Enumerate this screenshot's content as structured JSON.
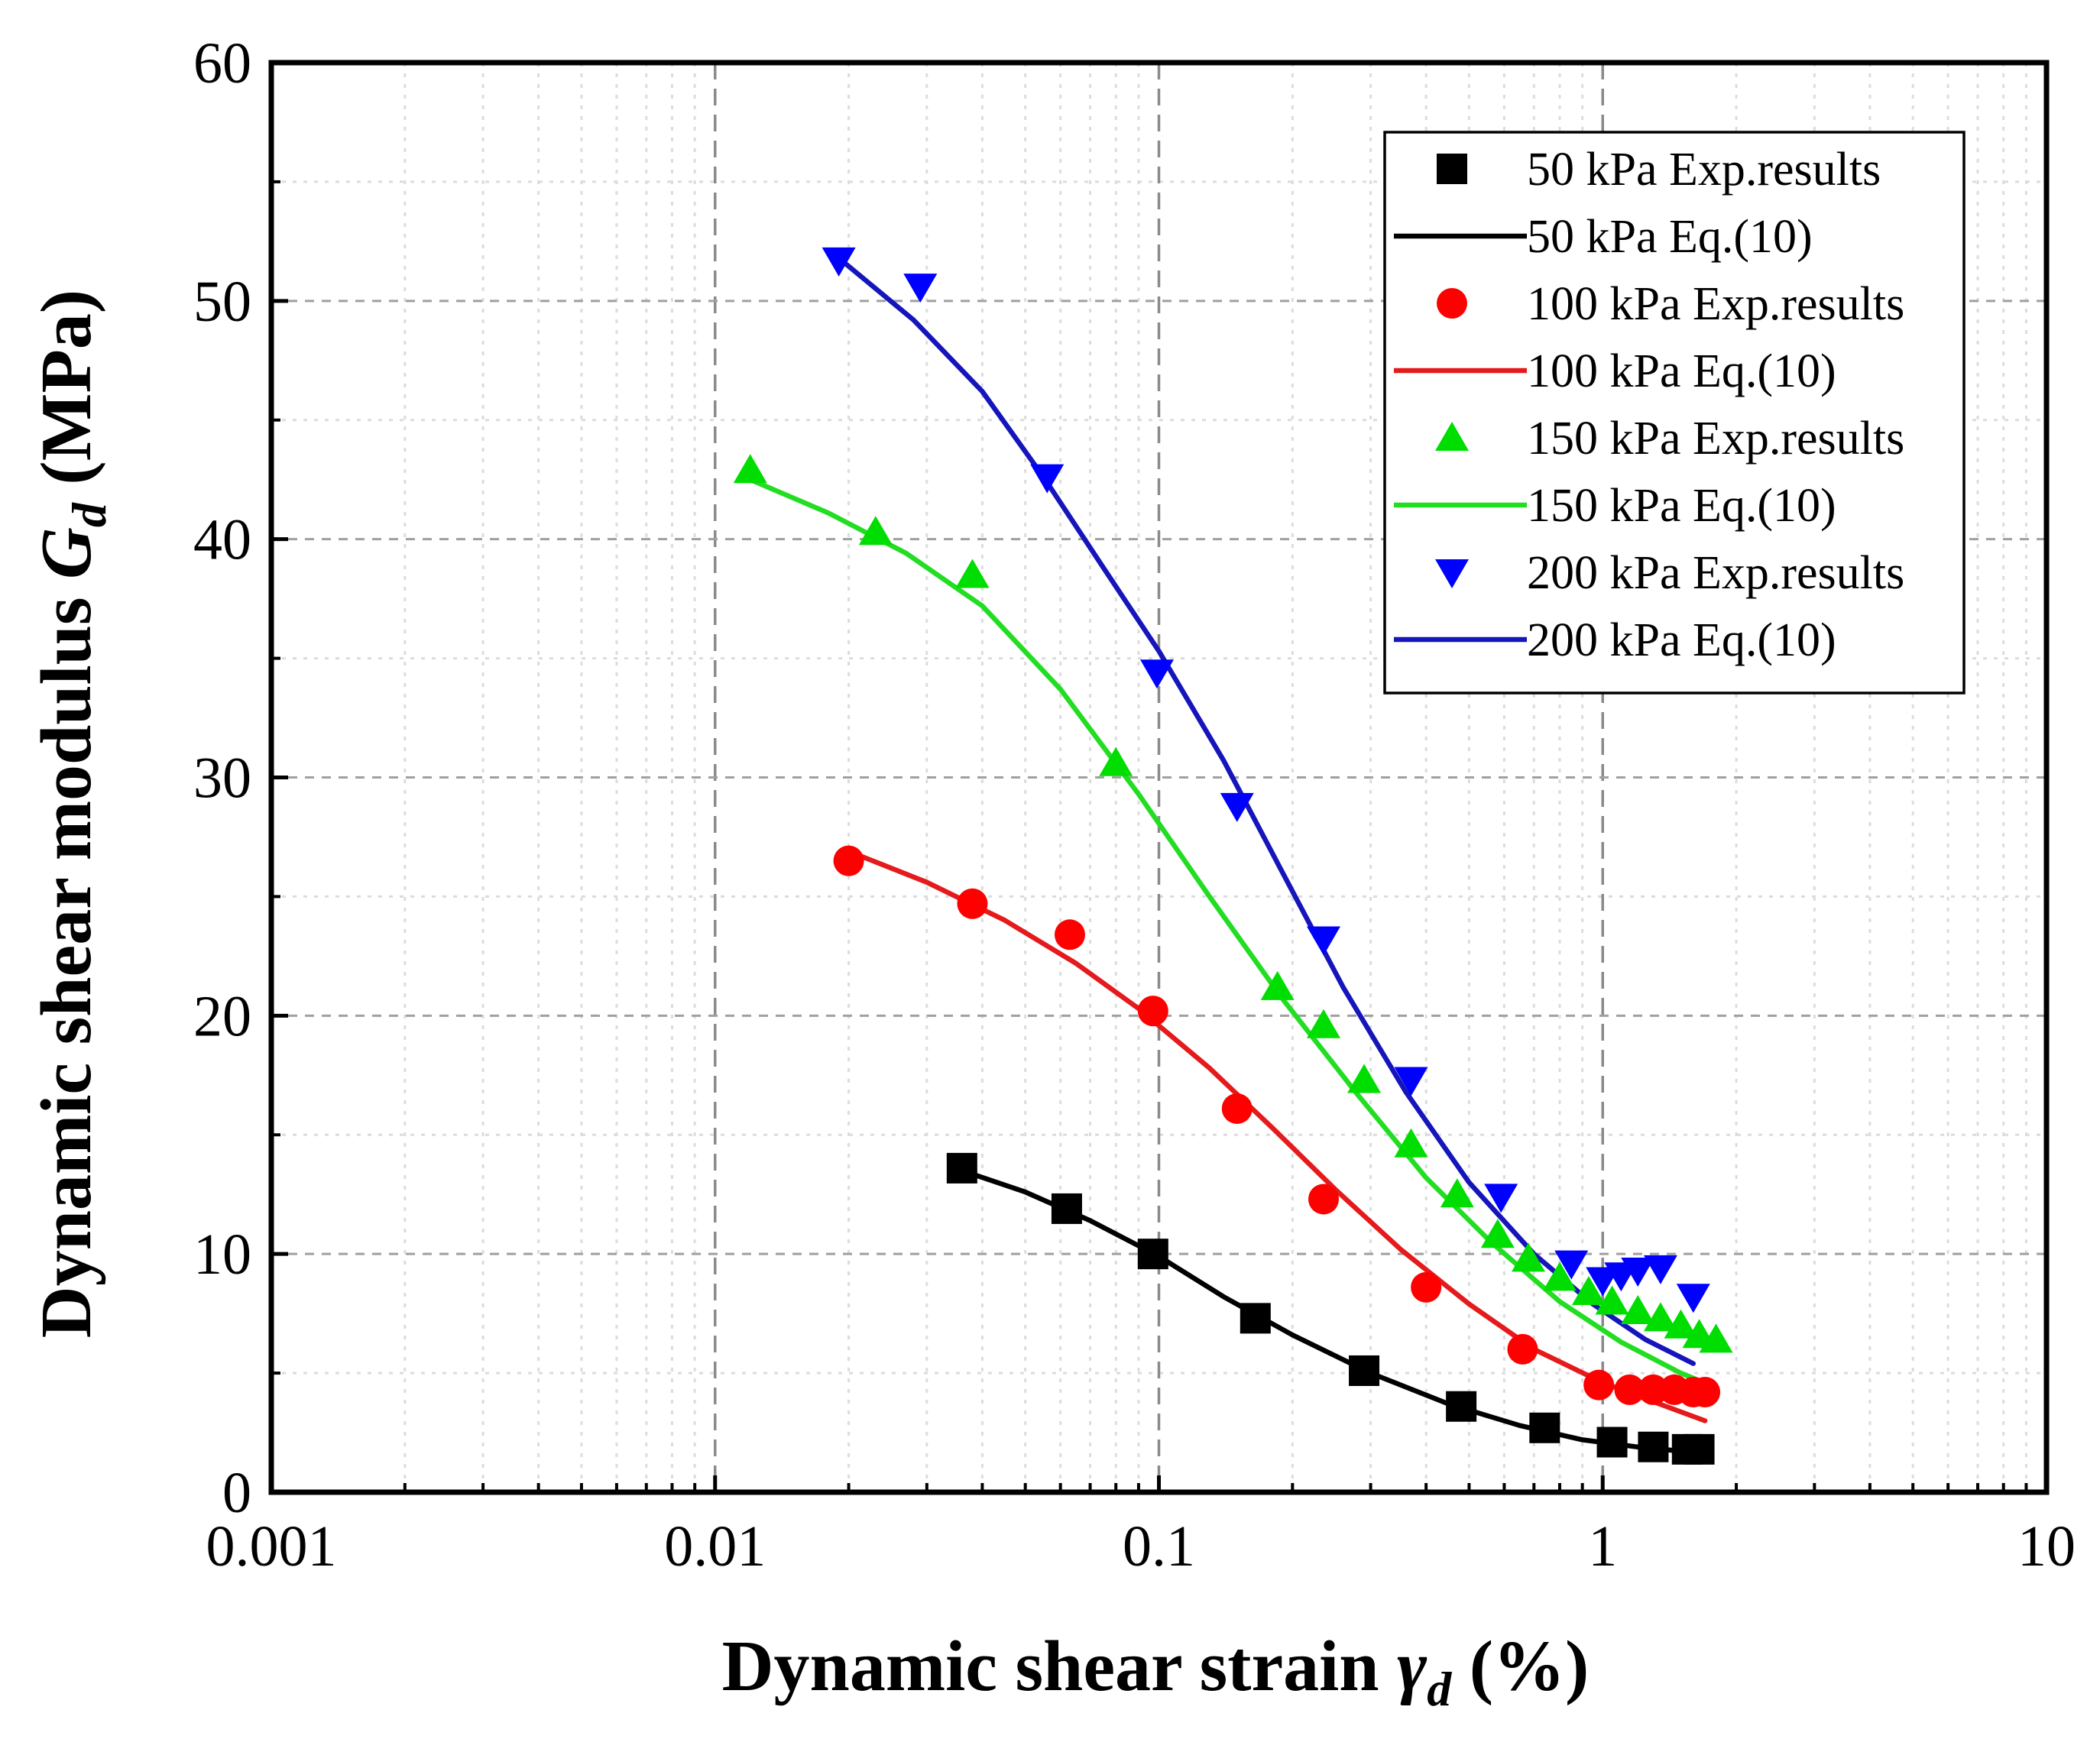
{
  "chart_data": {
    "type": "scatter",
    "title": "",
    "xlabel": {
      "main": "Dynamic shear strain ",
      "symbol": "γ",
      "sub": "d",
      "unit": " (%)"
    },
    "ylabel": {
      "main": "Dynamic shear modulus ",
      "symbol": "G",
      "sub": "d",
      "unit": " (MPa)"
    },
    "xscale": "log",
    "xlim": [
      0.001,
      10
    ],
    "ylim": [
      0,
      60
    ],
    "x_ticks": [
      {
        "value": 0.001,
        "label": "0.001"
      },
      {
        "value": 0.01,
        "label": "0.01"
      },
      {
        "value": 0.1,
        "label": "0.1"
      },
      {
        "value": 1,
        "label": "1"
      },
      {
        "value": 10,
        "label": "10"
      }
    ],
    "y_ticks": [
      {
        "value": 0,
        "label": "0"
      },
      {
        "value": 10,
        "label": "10"
      },
      {
        "value": 20,
        "label": "20"
      },
      {
        "value": 30,
        "label": "30"
      },
      {
        "value": 40,
        "label": "40"
      },
      {
        "value": 50,
        "label": "50"
      },
      {
        "value": 60,
        "label": "60"
      }
    ],
    "grid": true,
    "legend_position": "top-right",
    "series": [
      {
        "name": "50 kPa Exp.results",
        "kind": "markers",
        "marker": "square",
        "color": "#000000",
        "x": [
          0.036,
          0.062,
          0.097,
          0.165,
          0.29,
          0.48,
          0.74,
          1.05,
          1.3,
          1.55,
          1.65
        ],
        "y": [
          13.6,
          11.9,
          10.0,
          7.3,
          5.1,
          3.6,
          2.7,
          2.1,
          1.9,
          1.8,
          1.8
        ]
      },
      {
        "name": "50 kPa Eq.(10)",
        "kind": "line",
        "color": "#000000",
        "x": [
          0.036,
          0.05,
          0.07,
          0.1,
          0.14,
          0.2,
          0.3,
          0.45,
          0.65,
          0.9,
          1.2,
          1.55
        ],
        "y": [
          13.5,
          12.6,
          11.4,
          9.9,
          8.2,
          6.6,
          5.0,
          3.7,
          2.8,
          2.2,
          1.9,
          1.7
        ]
      },
      {
        "name": "100 kPa Exp.results",
        "kind": "markers",
        "marker": "circle",
        "color": "#ff0000",
        "x": [
          0.02,
          0.038,
          0.063,
          0.097,
          0.15,
          0.235,
          0.4,
          0.66,
          0.98,
          1.15,
          1.3,
          1.45,
          1.6,
          1.7
        ],
        "y": [
          26.5,
          24.7,
          23.4,
          20.2,
          16.1,
          12.3,
          8.6,
          6.0,
          4.5,
          4.3,
          4.3,
          4.3,
          4.2,
          4.2
        ]
      },
      {
        "name": "100 kPa Eq.(10)",
        "kind": "line",
        "color": "#e41a1c",
        "x": [
          0.02,
          0.03,
          0.045,
          0.065,
          0.09,
          0.13,
          0.18,
          0.25,
          0.35,
          0.5,
          0.7,
          1.0,
          1.3,
          1.7
        ],
        "y": [
          26.9,
          25.6,
          24.0,
          22.2,
          20.3,
          17.8,
          15.3,
          12.7,
          10.2,
          7.9,
          6.0,
          4.6,
          3.8,
          3.0
        ]
      },
      {
        "name": "150 kPa Exp.results",
        "kind": "markers",
        "marker": "triangle-up",
        "color": "#00dd00",
        "x": [
          0.012,
          0.023,
          0.038,
          0.08,
          0.185,
          0.235,
          0.29,
          0.37,
          0.47,
          0.58,
          0.68,
          0.8,
          0.93,
          1.05,
          1.2,
          1.35,
          1.5,
          1.65,
          1.8
        ],
        "y": [
          42.9,
          40.3,
          38.5,
          30.6,
          21.2,
          19.6,
          17.3,
          14.6,
          12.5,
          10.8,
          9.8,
          9.0,
          8.4,
          8.0,
          7.6,
          7.3,
          7.0,
          6.6,
          6.4
        ]
      },
      {
        "name": "150 kPa Eq.(10)",
        "kind": "line",
        "color": "#22dd22",
        "x": [
          0.012,
          0.018,
          0.027,
          0.04,
          0.06,
          0.09,
          0.13,
          0.19,
          0.28,
          0.4,
          0.56,
          0.8,
          1.1,
          1.5,
          1.8
        ],
        "y": [
          42.5,
          41.1,
          39.4,
          37.2,
          33.7,
          29.3,
          25.0,
          20.7,
          16.7,
          13.2,
          10.5,
          8.0,
          6.3,
          5.0,
          4.4
        ]
      },
      {
        "name": "200 kPa Exp.results",
        "kind": "markers",
        "marker": "triangle-down",
        "color": "#0000ff",
        "x": [
          0.019,
          0.029,
          0.056,
          0.099,
          0.15,
          0.235,
          0.37,
          0.59,
          0.85,
          1.0,
          1.1,
          1.2,
          1.35,
          1.6
        ],
        "y": [
          51.7,
          50.6,
          42.6,
          34.4,
          28.8,
          23.2,
          17.3,
          12.4,
          9.6,
          8.9,
          9.1,
          9.3,
          9.4,
          8.2
        ]
      },
      {
        "name": "200 kPa Eq.(10)",
        "kind": "line",
        "color": "#1515bb",
        "x": [
          0.019,
          0.028,
          0.04,
          0.055,
          0.075,
          0.1,
          0.14,
          0.19,
          0.26,
          0.36,
          0.5,
          0.7,
          0.95,
          1.25,
          1.6
        ],
        "y": [
          51.8,
          49.2,
          46.2,
          42.6,
          38.8,
          35.3,
          30.7,
          26.0,
          21.2,
          16.8,
          13.0,
          10.0,
          7.9,
          6.4,
          5.4
        ]
      }
    ]
  }
}
